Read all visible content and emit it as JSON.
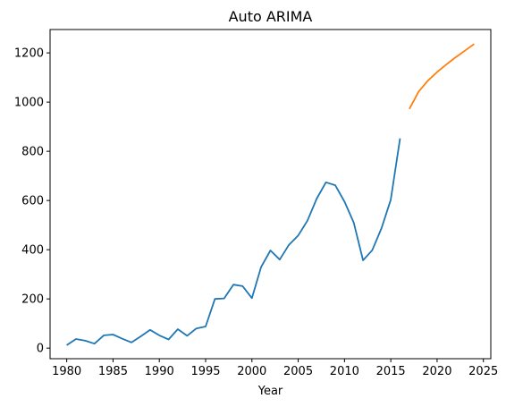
{
  "chart_data": {
    "type": "line",
    "title": "Auto ARIMA",
    "xlabel": "Year",
    "ylabel": "",
    "xlim": [
      1978.2,
      2025.8
    ],
    "ylim": [
      -43,
      1295
    ],
    "xticks": [
      1980,
      1985,
      1990,
      1995,
      2000,
      2005,
      2010,
      2015,
      2020,
      2025
    ],
    "yticks": [
      0,
      200,
      400,
      600,
      800,
      1000,
      1200
    ],
    "grid": false,
    "series": [
      {
        "name": "observed",
        "color": "#1f77b4",
        "x": [
          1980,
          1981,
          1982,
          1983,
          1984,
          1985,
          1986,
          1987,
          1988,
          1989,
          1990,
          1991,
          1992,
          1993,
          1994,
          1995,
          1996,
          1997,
          1998,
          1999,
          2000,
          2001,
          2002,
          2003,
          2004,
          2005,
          2006,
          2007,
          2008,
          2009,
          2010,
          2011,
          2012,
          2013,
          2014,
          2015,
          2016
        ],
        "values": [
          12,
          37,
          30,
          18,
          52,
          55,
          38,
          23,
          48,
          74,
          52,
          35,
          77,
          50,
          80,
          88,
          200,
          202,
          258,
          252,
          203,
          330,
          397,
          360,
          420,
          458,
          518,
          608,
          674,
          662,
          595,
          510,
          357,
          398,
          488,
          603,
          852
        ]
      },
      {
        "name": "forecast",
        "color": "#ff7f0e",
        "x": [
          2017,
          2018,
          2019,
          2020,
          2021,
          2022,
          2023,
          2024
        ],
        "values": [
          972,
          1042,
          1087,
          1122,
          1153,
          1182,
          1209,
          1236
        ]
      }
    ]
  }
}
